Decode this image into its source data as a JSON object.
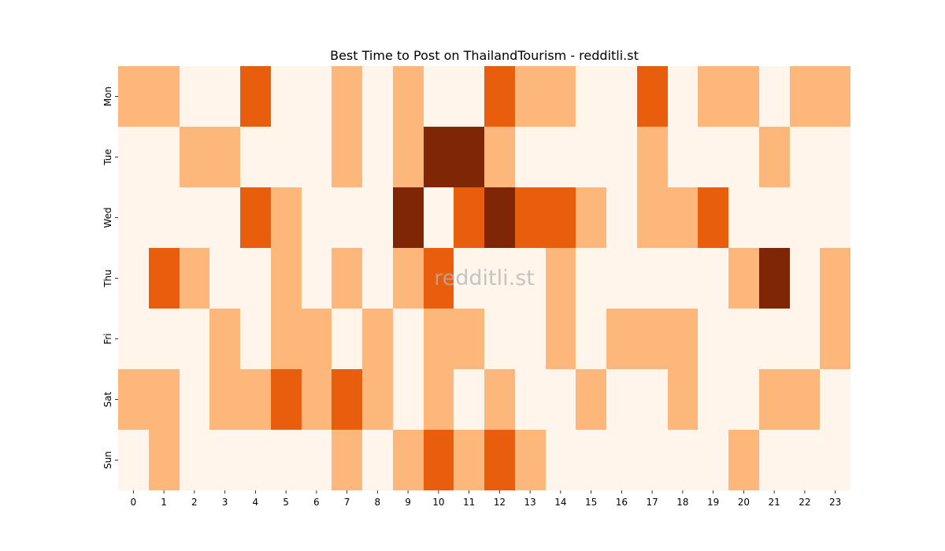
{
  "chart_data": {
    "type": "heatmap",
    "title": "Best Time to Post on ThailandTourism - redditli.st",
    "watermark": "redditli.st",
    "xlabel": "",
    "ylabel": "",
    "x_categories": [
      "0",
      "1",
      "2",
      "3",
      "4",
      "5",
      "6",
      "7",
      "8",
      "9",
      "10",
      "11",
      "12",
      "13",
      "14",
      "15",
      "16",
      "17",
      "18",
      "19",
      "20",
      "21",
      "22",
      "23"
    ],
    "y_categories": [
      "Mon",
      "Tue",
      "Wed",
      "Thu",
      "Fri",
      "Sat",
      "Sun"
    ],
    "value_range": [
      0,
      3
    ],
    "values": [
      [
        1,
        1,
        0,
        0,
        2,
        0,
        0,
        1,
        0,
        1,
        0,
        0,
        2,
        1,
        1,
        0,
        0,
        2,
        0,
        1,
        1,
        0,
        1,
        1
      ],
      [
        0,
        0,
        1,
        1,
        0,
        0,
        0,
        1,
        0,
        1,
        3,
        3,
        1,
        0,
        0,
        0,
        0,
        1,
        0,
        0,
        0,
        1,
        0,
        0
      ],
      [
        0,
        0,
        0,
        0,
        2,
        1,
        0,
        0,
        0,
        3,
        0,
        2,
        3,
        2,
        2,
        1,
        0,
        1,
        1,
        2,
        0,
        0,
        0,
        0
      ],
      [
        0,
        2,
        1,
        0,
        0,
        1,
        0,
        1,
        0,
        1,
        2,
        0,
        0,
        0,
        1,
        0,
        0,
        0,
        0,
        0,
        1,
        3,
        0,
        1
      ],
      [
        0,
        0,
        0,
        1,
        0,
        1,
        1,
        0,
        1,
        0,
        1,
        1,
        0,
        0,
        1,
        0,
        1,
        1,
        1,
        0,
        0,
        0,
        0,
        1
      ],
      [
        1,
        1,
        0,
        1,
        1,
        2,
        1,
        2,
        1,
        0,
        1,
        0,
        1,
        0,
        0,
        1,
        0,
        0,
        1,
        0,
        0,
        1,
        1,
        0
      ],
      [
        0,
        1,
        0,
        0,
        0,
        0,
        0,
        1,
        0,
        1,
        2,
        1,
        2,
        1,
        0,
        0,
        0,
        0,
        0,
        0,
        1,
        0,
        0,
        0
      ]
    ],
    "colormap": [
      "#fff5eb",
      "#fdb77a",
      "#e95e0d",
      "#7f2704"
    ],
    "grid": false,
    "legend": "none"
  }
}
